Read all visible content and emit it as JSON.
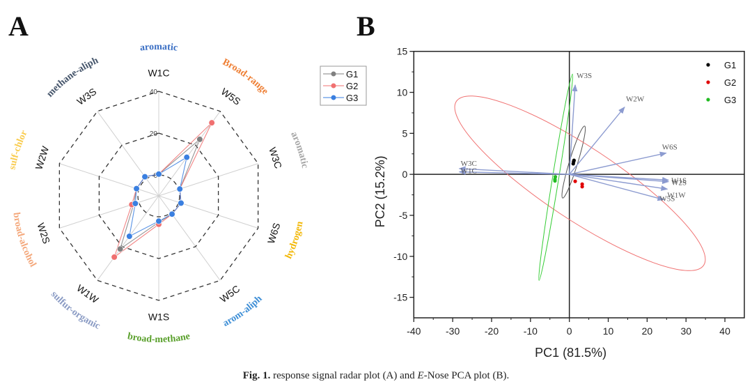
{
  "panels": {
    "a_label": "A",
    "b_label": "B"
  },
  "caption": {
    "fig": "Fig. 1.",
    "text_1": " response signal radar plot (A) and ",
    "italic": "E",
    "text_2": "-Nose PCA plot (B)."
  },
  "chart_data": [
    {
      "type": "radar",
      "title": "response signal radar plot",
      "axes": [
        "W1C",
        "W5S",
        "W3C",
        "W6S",
        "W5C",
        "W1S",
        "W1W",
        "W2S",
        "W2W",
        "W3S"
      ],
      "categories": [
        {
          "sensor": "W1C",
          "label": "aromatic",
          "color": "#3b6fc4"
        },
        {
          "sensor": "W5S",
          "label": "Broad-range",
          "color": "#ee7d31"
        },
        {
          "sensor": "W3C",
          "label": "aromatic",
          "color": "#a6a6a6"
        },
        {
          "sensor": "W6S",
          "label": "hydrogen",
          "color": "#f2b705"
        },
        {
          "sensor": "W5C",
          "label": "arom-aliph",
          "color": "#3d8ed6"
        },
        {
          "sensor": "W1S",
          "label": "broad-methane",
          "color": "#5aa02c"
        },
        {
          "sensor": "W1W",
          "label": "sulfur-organic",
          "color": "#8a9bc4"
        },
        {
          "sensor": "W2S",
          "label": "broad-alcohol",
          "color": "#f4a77a"
        },
        {
          "sensor": "W2W",
          "label": "sulf-chlor",
          "color": "#f9cc4f"
        },
        {
          "sensor": "W3S",
          "label": "methane-aliph",
          "color": "#44546a"
        }
      ],
      "radial_ticks": [
        0,
        20,
        40
      ],
      "range": [
        0,
        40
      ],
      "series": [
        {
          "name": "G1",
          "color": "#808080",
          "values": [
            0.4,
            23.4,
            0.6,
            1.2,
            0.8,
            2.6,
            21.4,
            2.6,
            1.2,
            1.3
          ]
        },
        {
          "name": "G2",
          "color": "#f07070",
          "values": [
            0.4,
            33.2,
            0.6,
            1.2,
            0.8,
            3.6,
            26.2,
            3.6,
            1.2,
            1.3
          ]
        },
        {
          "name": "G3",
          "color": "#3a7fe0",
          "values": [
            0.4,
            12.8,
            0.6,
            1.2,
            0.8,
            2.1,
            13.9,
            1.8,
            1.2,
            1.3
          ]
        }
      ],
      "legend": [
        "G1",
        "G2",
        "G3"
      ],
      "legend_position": "top-right"
    },
    {
      "type": "scatter",
      "title": "E-Nose PCA plot",
      "xlabel": "PC1 (81.5%)",
      "ylabel": "PC2 (15.2%)",
      "xlim": [
        -40,
        45
      ],
      "ylim": [
        -17.5,
        15
      ],
      "xticks": [
        -40,
        -30,
        -20,
        -10,
        0,
        10,
        20,
        30,
        40
      ],
      "yticks": [
        -15,
        -10,
        -5,
        0,
        5,
        10,
        15
      ],
      "legend": [
        "G1",
        "G2",
        "G3"
      ],
      "legend_position": "top-right",
      "series": [
        {
          "name": "G1",
          "color": "#000000",
          "points": [
            [
              1.0,
              1.3
            ],
            [
              1.1,
              1.55
            ],
            [
              1.2,
              1.7
            ]
          ],
          "ellipse": {
            "center": [
              1.1,
              1.5
            ],
            "color": "#555555"
          }
        },
        {
          "name": "G2",
          "color": "#e00000",
          "points": [
            [
              1.5,
              -0.85
            ],
            [
              3.3,
              -1.2
            ],
            [
              3.3,
              -1.5
            ]
          ],
          "ellipse": {
            "center": [
              2.7,
              -1.1
            ],
            "color": "#f07070"
          }
        },
        {
          "name": "G3",
          "color": "#22bb22",
          "points": [
            [
              -3.6,
              -0.3
            ],
            [
              -3.7,
              -0.6
            ],
            [
              -3.7,
              -0.8
            ]
          ],
          "ellipse": {
            "center": [
              -3.5,
              -0.35
            ],
            "color": "#33cc33"
          }
        }
      ],
      "loadings": [
        {
          "name": "W3S",
          "x": 1.5,
          "y": 10.9
        },
        {
          "name": "W2W",
          "x": 14.2,
          "y": 8.2
        },
        {
          "name": "W6S",
          "x": 24.9,
          "y": 2.6
        },
        {
          "name": "W1S",
          "x": 25.5,
          "y": -0.7
        },
        {
          "name": "W2S",
          "x": 25.5,
          "y": -0.9
        },
        {
          "name": "W1W",
          "x": 25.2,
          "y": -1.8
        },
        {
          "name": "W5S",
          "x": 24.3,
          "y": -3.1
        },
        {
          "name": "W3C",
          "x": -28.3,
          "y": 0.7
        },
        {
          "name": "W1C",
          "x": -28.3,
          "y": 0.3
        }
      ],
      "loading_color": "#8c9bd0"
    }
  ]
}
